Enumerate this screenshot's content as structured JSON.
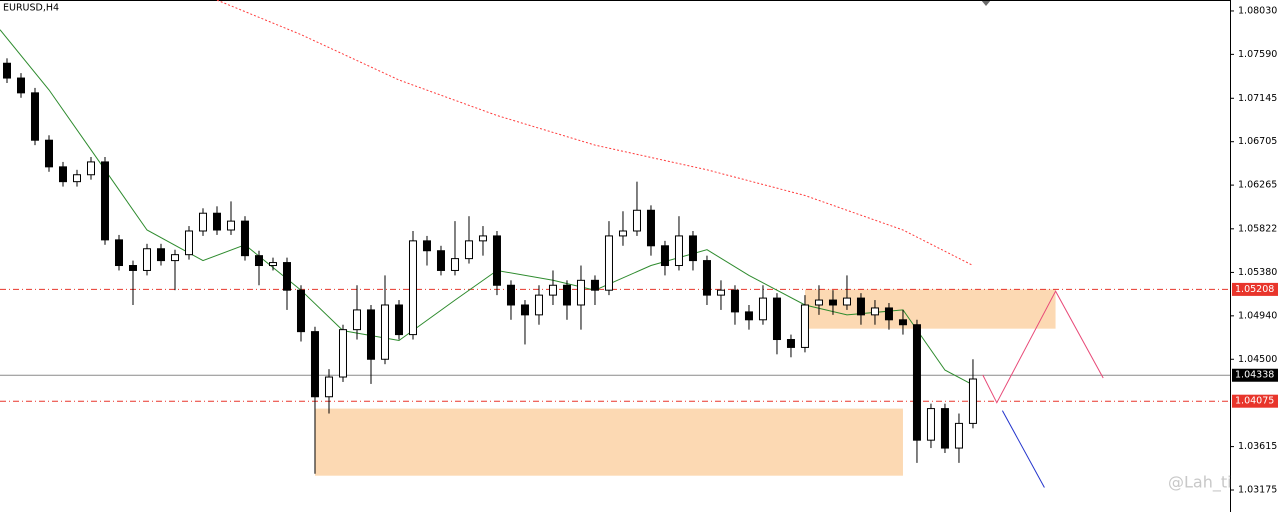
{
  "chart_data": {
    "type": "candlestick",
    "title": "EURUSD,H4",
    "watermark": "@Lah_ti",
    "xlim": [
      -0.5,
      87.36
    ],
    "ylim": [
      1.02952,
      1.08141
    ],
    "yticks": [
      {
        "value": 1.0803,
        "label": "1.08030"
      },
      {
        "value": 1.0759,
        "label": "1.07590"
      },
      1.07145,
      1.06705,
      1.06265,
      1.05822,
      {
        "value": 1.0538,
        "label": "1.05380"
      },
      {
        "value": 1.0494,
        "label": "1.04940"
      },
      {
        "value": 1.045,
        "label": "1.04500"
      },
      1.03615,
      1.03175
    ],
    "open": [
      1.075,
      1.0735,
      1.072,
      1.0672,
      1.0645,
      1.063,
      1.0637,
      1.065,
      1.0571,
      1.0545,
      1.054,
      1.0562,
      1.055,
      1.0556,
      1.058,
      1.0598,
      1.0581,
      1.059,
      1.0555,
      1.0545,
      1.0548,
      1.052,
      1.0478,
      1.0412,
      1.0432,
      1.048,
      1.05,
      1.045,
      1.0505,
      1.0475,
      1.057,
      1.056,
      1.054,
      1.0552,
      1.057,
      1.0575,
      1.0525,
      1.0505,
      1.0495,
      1.0515,
      1.0525,
      1.0505,
      1.053,
      1.052,
      1.0575,
      1.058,
      1.0601,
      1.0565,
      1.0545,
      1.0575,
      1.055,
      1.0515,
      1.052,
      1.0498,
      1.049,
      1.0512,
      1.047,
      1.0462,
      1.0505,
      1.051,
      1.0505,
      1.0512,
      1.0495,
      1.0502,
      1.049,
      1.0485,
      1.0368,
      1.04,
      1.036,
      1.0385
    ],
    "high": [
      1.0755,
      1.074,
      1.0725,
      1.0677,
      1.065,
      1.0642,
      1.0655,
      1.0655,
      1.0576,
      1.055,
      1.0567,
      1.0567,
      1.0561,
      1.0585,
      1.0603,
      1.0605,
      1.061,
      1.0595,
      1.056,
      1.0553,
      1.0553,
      1.0525,
      1.0483,
      1.044,
      1.0485,
      1.0525,
      1.0505,
      1.0535,
      1.051,
      1.058,
      1.0575,
      1.0565,
      1.059,
      1.0595,
      1.0585,
      1.058,
      1.053,
      1.051,
      1.0525,
      1.054,
      1.053,
      1.0545,
      1.0535,
      1.059,
      1.06,
      1.063,
      1.0606,
      1.057,
      1.0595,
      1.058,
      1.0555,
      1.053,
      1.0525,
      1.0505,
      1.0525,
      1.0517,
      1.0475,
      1.0515,
      1.0525,
      1.052,
      1.0535,
      1.0517,
      1.051,
      1.0507,
      1.05,
      1.049,
      1.0405,
      1.0405,
      1.0395,
      1.045
    ],
    "low": [
      1.073,
      1.0715,
      1.0667,
      1.064,
      1.0625,
      1.0625,
      1.0632,
      1.0566,
      1.054,
      1.0505,
      1.0535,
      1.0545,
      1.052,
      1.0551,
      1.0575,
      1.0576,
      1.0576,
      1.055,
      1.0525,
      1.054,
      1.05,
      1.0468,
      1.0334,
      1.0395,
      1.0427,
      1.047,
      1.0425,
      1.0445,
      1.047,
      1.047,
      1.0545,
      1.0535,
      1.0535,
      1.0547,
      1.0555,
      1.0515,
      1.049,
      1.0465,
      1.0485,
      1.0505,
      1.049,
      1.048,
      1.0505,
      1.0515,
      1.0565,
      1.0575,
      1.0555,
      1.0535,
      1.054,
      1.054,
      1.0505,
      1.05,
      1.0485,
      1.048,
      1.0485,
      1.0455,
      1.0452,
      1.0457,
      1.0495,
      1.0495,
      1.05,
      1.0485,
      1.0485,
      1.048,
      1.0475,
      1.0345,
      1.036,
      1.0355,
      1.0345,
      1.038
    ],
    "close": [
      1.0735,
      1.072,
      1.0672,
      1.0645,
      1.063,
      1.0637,
      1.065,
      1.0571,
      1.0545,
      1.054,
      1.0562,
      1.055,
      1.0556,
      1.058,
      1.0598,
      1.0581,
      1.059,
      1.0555,
      1.0545,
      1.0548,
      1.052,
      1.0478,
      1.0412,
      1.0432,
      1.048,
      1.05,
      1.045,
      1.0505,
      1.0475,
      1.057,
      1.056,
      1.054,
      1.0552,
      1.057,
      1.0575,
      1.0525,
      1.0505,
      1.0495,
      1.0515,
      1.0525,
      1.0505,
      1.053,
      1.052,
      1.0575,
      1.058,
      1.0601,
      1.0565,
      1.0545,
      1.0575,
      1.055,
      1.0515,
      1.052,
      1.0498,
      1.049,
      1.0512,
      1.047,
      1.0462,
      1.0505,
      1.051,
      1.0505,
      1.0512,
      1.0495,
      1.0502,
      1.049,
      1.0485,
      1.0368,
      1.04,
      1.036,
      1.0385,
      1.043
    ],
    "series": [
      {
        "color": "#2e8b2e",
        "style": "solid",
        "x": [
          -0.5,
          3,
          7,
          10,
          14,
          17,
          21,
          24,
          28,
          32,
          35,
          39,
          42,
          46,
          50,
          53,
          57,
          60,
          64,
          67,
          69
        ],
        "values": [
          1.0784,
          1.0723,
          1.0642,
          1.0581,
          1.055,
          1.0566,
          1.052,
          1.0479,
          1.0469,
          1.051,
          1.054,
          1.053,
          1.052,
          1.0545,
          1.0561,
          1.0535,
          1.0505,
          1.0495,
          1.05,
          1.0439,
          1.0424
        ]
      },
      {
        "color": "#ff3b3b",
        "style": "dotted",
        "x": [
          15,
          21,
          28,
          35,
          42,
          50,
          57,
          64,
          69
        ],
        "values": [
          1.0814,
          1.0779,
          1.0733,
          1.0697,
          1.0667,
          1.0642,
          1.0616,
          1.0581,
          1.0545
        ]
      }
    ],
    "levels": [
      {
        "value": 1.05208,
        "color": "#e8352b",
        "style": "dashdot"
      },
      {
        "value": 1.04075,
        "color": "#e8352b",
        "style": "dashdot"
      },
      {
        "value": 1.04338,
        "color": "#000000",
        "style": "solid"
      }
    ],
    "zones": [
      {
        "x": [
          22,
          64
        ],
        "y": [
          1.04,
          1.0332
        ],
        "color": "#fcd9b3"
      },
      {
        "x": [
          57,
          74.9
        ],
        "y": [
          1.05208,
          1.0481
        ],
        "color": "#fcd9b3"
      }
    ],
    "drawings": [
      {
        "color": "#e84a78",
        "x": [
          69.7,
          70.7,
          74.9,
          78.3
        ],
        "values": [
          1.0434,
          1.0406,
          1.0519,
          1.0431
        ]
      },
      {
        "color": "#2233cc",
        "x": [
          71.1,
          74.1
        ],
        "values": [
          1.0398,
          1.032
        ]
      }
    ]
  }
}
